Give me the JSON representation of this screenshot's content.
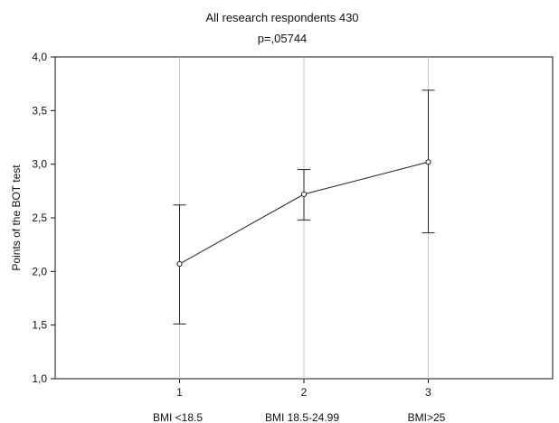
{
  "chart_data": {
    "type": "line",
    "title": "All research respondents 430",
    "subtitle": "p=,05744",
    "xlabel": "",
    "ylabel": "Points of the BOT test",
    "x": [
      1,
      2,
      3
    ],
    "x_tick_labels": [
      "1",
      "2",
      "3"
    ],
    "category_labels": [
      "BMI <18.5",
      "BMI 18.5-24.99",
      "BMI>25"
    ],
    "xlim": [
      0,
      4
    ],
    "ylim": [
      1.0,
      4.0
    ],
    "y_ticks": [
      1.0,
      1.5,
      2.0,
      2.5,
      3.0,
      3.5,
      4.0
    ],
    "y_tick_labels": [
      "1,0",
      "1,5",
      "2,0",
      "2,5",
      "3,0",
      "3,5",
      "4,0"
    ],
    "grid": "vertical",
    "series": [
      {
        "values": [
          2.07,
          2.72,
          3.02
        ],
        "error_low": [
          1.51,
          2.48,
          2.36
        ],
        "error_high": [
          2.62,
          2.95,
          3.69
        ]
      }
    ],
    "colors": {
      "line": "#222222",
      "grid": "#c8c8c8",
      "axis": "#111111"
    }
  }
}
